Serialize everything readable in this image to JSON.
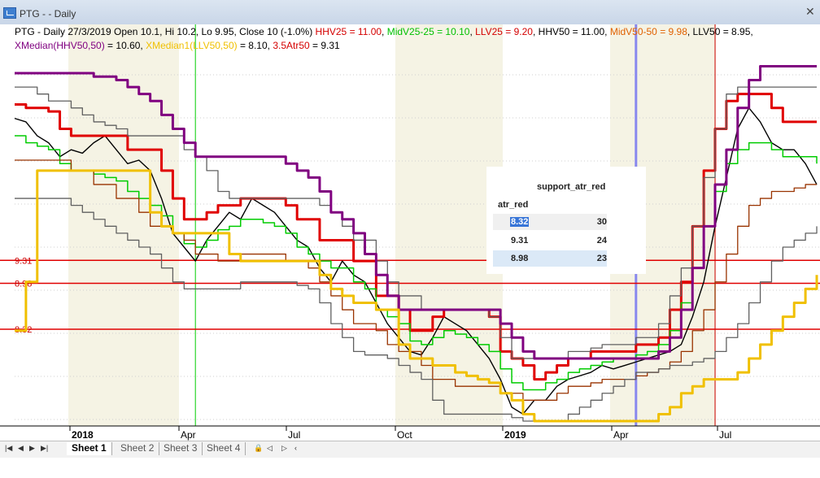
{
  "window": {
    "title": "PTG - - Daily"
  },
  "header": {
    "line1": [
      {
        "text": "PTG - Daily 27/3/2019 Open 10.1, Hi 10.2, Lo 9.95, Close 10 (-1.0%) ",
        "color": "#000000"
      },
      {
        "text": "HHV25 = 11.00",
        "color": "#d40000"
      },
      {
        "text": ", ",
        "color": "#000000"
      },
      {
        "text": "MidV25-25 = 10.10",
        "color": "#00c000"
      },
      {
        "text": ", ",
        "color": "#000000"
      },
      {
        "text": "LLV25 = 9.20",
        "color": "#d40000"
      },
      {
        "text": ", HHV50 = 11.00, ",
        "color": "#000000"
      },
      {
        "text": "MidV50-50 = 9.98",
        "color": "#e06000"
      },
      {
        "text": ", LLV50 = 8.95,",
        "color": "#000000"
      }
    ],
    "line2": [
      {
        "text": "XMedian(HHV50,50)",
        "color": "#800080"
      },
      {
        "text": " = 10.60, ",
        "color": "#000000"
      },
      {
        "text": "XMedian1(LLV50,50)",
        "color": "#f0c000"
      },
      {
        "text": " = 8.10, ",
        "color": "#000000"
      },
      {
        "text": "3.5Atr50",
        "color": "#d40000"
      },
      {
        "text": " = 9.31",
        "color": "#000000"
      }
    ]
  },
  "popup": {
    "title": "support_atr_red",
    "column": "atr_red",
    "rows": [
      {
        "key": "8.32",
        "value": "30"
      },
      {
        "key": "9.31",
        "value": "24"
      },
      {
        "key": "8.98",
        "value": "23"
      }
    ]
  },
  "tabs": {
    "items": [
      "Sheet 1",
      "Sheet 2",
      "Sheet 3",
      "Sheet 4"
    ],
    "active": "Sheet 1"
  },
  "chart_data": {
    "type": "line",
    "title": "PTG - Daily",
    "ylim": [
      7.0,
      12.0
    ],
    "x_ticks": [
      "2018",
      "Apr",
      "Jul",
      "Oct",
      "2019",
      "Apr",
      "Jul"
    ],
    "support_levels": [
      {
        "label": "9.31",
        "value": 9.31
      },
      {
        "label": "8.98",
        "value": 8.98
      },
      {
        "label": "8.32",
        "value": 8.32
      }
    ],
    "series": [
      {
        "name": "Close",
        "color": "#000000",
        "values": [
          11.35,
          11.3,
          11.1,
          11.0,
          10.8,
          10.9,
          10.85,
          11.0,
          11.1,
          10.9,
          10.7,
          10.75,
          10.6,
          10.2,
          9.7,
          9.5,
          9.3,
          9.6,
          9.8,
          10.0,
          9.9,
          10.2,
          10.1,
          10.0,
          9.8,
          9.6,
          9.5,
          9.2,
          9.0,
          9.3,
          9.1,
          9.0,
          8.7,
          8.4,
          8.2,
          8.0,
          7.95,
          8.2,
          8.5,
          8.4,
          8.3,
          8.1,
          7.9,
          7.6,
          7.2,
          7.1,
          7.3,
          7.3,
          7.5,
          7.6,
          7.65,
          7.7,
          7.8,
          7.75,
          7.8,
          7.85,
          7.9,
          7.95,
          8.0,
          8.1,
          8.5,
          9.0,
          9.8,
          10.5,
          11.2,
          11.5,
          11.3,
          11.0,
          10.9,
          10.9,
          10.7,
          10.4
        ]
      },
      {
        "name": "HHV25",
        "color": "#e00000",
        "values": [
          11.55,
          11.5,
          11.5,
          11.45,
          11.2,
          11.1,
          11.1,
          11.1,
          11.1,
          11.1,
          10.9,
          10.9,
          10.9,
          10.6,
          10.2,
          9.9,
          9.9,
          10.0,
          10.1,
          10.1,
          10.2,
          10.2,
          10.2,
          10.2,
          10.1,
          9.9,
          9.9,
          9.6,
          9.6,
          9.6,
          9.3,
          9.3,
          8.8,
          8.8,
          8.6,
          8.3,
          8.3,
          8.5,
          8.6,
          8.6,
          8.6,
          8.6,
          8.5,
          8.0,
          7.9,
          7.8,
          7.6,
          7.7,
          7.8,
          7.9,
          7.9,
          8.0,
          8.0,
          8.0,
          8.0,
          8.1,
          8.1,
          8.2,
          8.6,
          9.0,
          9.8,
          10.6,
          11.2,
          11.6,
          11.7,
          11.7,
          11.7,
          11.5,
          11.3,
          11.3,
          11.3,
          11.3
        ]
      },
      {
        "name": "MidV25-25",
        "color": "#00cc00",
        "values": [
          11.1,
          11.0,
          10.95,
          10.9,
          10.7,
          10.6,
          10.6,
          10.55,
          10.5,
          10.45,
          10.3,
          10.2,
          10.1,
          9.95,
          9.7,
          9.55,
          9.5,
          9.6,
          9.75,
          9.8,
          9.9,
          9.9,
          9.85,
          9.8,
          9.7,
          9.5,
          9.4,
          9.3,
          9.2,
          9.2,
          9.0,
          8.9,
          8.6,
          8.5,
          8.4,
          8.15,
          8.1,
          8.2,
          8.3,
          8.25,
          8.2,
          8.1,
          8.0,
          7.75,
          7.55,
          7.45,
          7.45,
          7.55,
          7.6,
          7.7,
          7.75,
          7.8,
          7.85,
          7.9,
          7.9,
          7.95,
          8.0,
          8.1,
          8.3,
          8.7,
          9.2,
          9.8,
          10.3,
          10.7,
          10.9,
          11.0,
          11.0,
          10.9,
          10.8,
          10.8,
          10.8,
          10.7
        ]
      },
      {
        "name": "HHV50",
        "color": "#606060",
        "values": [
          11.8,
          11.8,
          11.7,
          11.6,
          11.6,
          11.5,
          11.4,
          11.3,
          11.25,
          11.2,
          11.1,
          11.1,
          11.1,
          11.1,
          11.1,
          10.9,
          10.8,
          10.6,
          10.3,
          10.2,
          10.2,
          10.2,
          10.2,
          10.2,
          10.2,
          10.2,
          10.2,
          10.1,
          10.0,
          9.8,
          9.6,
          9.6,
          9.3,
          9.0,
          8.8,
          8.8,
          8.6,
          8.6,
          8.6,
          8.6,
          8.6,
          8.6,
          8.5,
          8.2,
          7.9,
          7.9,
          7.9,
          7.9,
          7.9,
          8.0,
          8.0,
          8.05,
          8.1,
          8.1,
          8.1,
          8.2,
          8.2,
          8.4,
          8.8,
          9.2,
          9.8,
          10.5,
          11.2,
          11.7,
          11.8,
          11.8,
          11.8,
          11.8,
          11.8,
          11.8,
          11.8,
          11.8
        ]
      },
      {
        "name": "MidV50-50",
        "color": "#993300",
        "values": [
          10.75,
          10.75,
          10.75,
          10.75,
          10.75,
          10.6,
          10.6,
          10.4,
          10.4,
          10.2,
          10.2,
          10.0,
          9.8,
          9.8,
          9.7,
          9.6,
          9.4,
          9.4,
          9.3,
          9.3,
          9.4,
          9.4,
          9.4,
          9.4,
          9.3,
          9.3,
          9.2,
          9.0,
          8.8,
          8.6,
          8.4,
          8.4,
          8.3,
          8.1,
          8.0,
          8.0,
          7.8,
          7.6,
          7.6,
          7.5,
          7.5,
          7.5,
          7.5,
          7.4,
          7.4,
          7.3,
          7.3,
          7.3,
          7.4,
          7.5,
          7.5,
          7.55,
          7.6,
          7.6,
          7.6,
          7.65,
          7.7,
          7.75,
          7.85,
          8.0,
          8.3,
          8.6,
          9.0,
          9.4,
          9.8,
          10.1,
          10.2,
          10.3,
          10.3,
          10.35,
          10.4,
          10.4
        ]
      },
      {
        "name": "LLV50",
        "color": "#606060",
        "values": [
          10.2,
          10.2,
          10.2,
          10.2,
          10.2,
          10.1,
          10.0,
          9.9,
          9.8,
          9.7,
          9.6,
          9.5,
          9.4,
          9.2,
          9.0,
          8.9,
          8.9,
          8.9,
          8.9,
          8.9,
          9.0,
          9.0,
          9.0,
          9.0,
          9.0,
          8.95,
          8.9,
          8.7,
          8.4,
          8.2,
          8.0,
          7.95,
          7.95,
          7.9,
          7.8,
          7.7,
          7.6,
          7.3,
          7.1,
          7.1,
          7.1,
          7.1,
          7.1,
          7.1,
          7.05,
          7.0,
          7.0,
          7.0,
          7.0,
          7.1,
          7.2,
          7.3,
          7.4,
          7.5,
          7.6,
          7.7,
          7.7,
          7.75,
          7.8,
          7.8,
          7.85,
          7.9,
          8.0,
          8.2,
          8.4,
          8.7,
          9.0,
          9.3,
          9.5,
          9.6,
          9.7,
          9.8
        ]
      },
      {
        "name": "XMedian(HHV50,50)",
        "color": "#800080",
        "values": [
          12.0,
          12.0,
          12.0,
          12.0,
          12.0,
          12.0,
          12.0,
          11.95,
          11.95,
          11.9,
          11.8,
          11.7,
          11.6,
          11.4,
          11.2,
          11.0,
          10.8,
          10.8,
          10.8,
          10.8,
          10.8,
          10.8,
          10.8,
          10.8,
          10.7,
          10.6,
          10.5,
          10.3,
          10.0,
          9.9,
          9.7,
          9.4,
          9.1,
          8.8,
          8.6,
          8.6,
          8.6,
          8.6,
          8.6,
          8.6,
          8.6,
          8.6,
          8.6,
          8.4,
          8.2,
          8.0,
          7.9,
          7.9,
          7.9,
          7.9,
          7.9,
          7.9,
          7.9,
          7.9,
          7.9,
          7.9,
          7.9,
          8.0,
          8.2,
          8.6,
          9.2,
          9.8,
          10.4,
          10.9,
          11.5,
          11.9,
          12.1,
          12.1,
          12.1,
          12.1,
          12.1,
          12.1
        ]
      },
      {
        "name": "XMedian1(LLV50,50)",
        "color": "#f0c000",
        "values": [
          8.3,
          9.0,
          10.6,
          10.6,
          10.6,
          10.6,
          10.6,
          10.6,
          10.6,
          10.6,
          10.6,
          10.6,
          10.0,
          9.8,
          9.7,
          9.7,
          9.7,
          9.7,
          9.7,
          9.4,
          9.3,
          9.3,
          9.3,
          9.3,
          9.3,
          9.3,
          9.3,
          9.1,
          8.9,
          8.8,
          8.7,
          8.7,
          8.6,
          8.6,
          8.1,
          7.9,
          7.9,
          7.8,
          7.8,
          7.7,
          7.65,
          7.6,
          7.55,
          7.4,
          7.3,
          7.1,
          7.0,
          7.0,
          7.0,
          7.0,
          7.0,
          7.0,
          7.0,
          7.0,
          7.0,
          7.0,
          7.0,
          7.1,
          7.2,
          7.4,
          7.5,
          7.6,
          7.6,
          7.6,
          7.7,
          7.9,
          8.1,
          8.3,
          8.5,
          8.7,
          8.9,
          9.1
        ]
      }
    ],
    "markers": [
      {
        "type": "vline",
        "at": 16,
        "color": "#00cc00"
      },
      {
        "type": "vline",
        "at": 55,
        "color": "#8888ee"
      },
      {
        "type": "vline",
        "at": 62,
        "color": "#cc0000"
      }
    ]
  }
}
